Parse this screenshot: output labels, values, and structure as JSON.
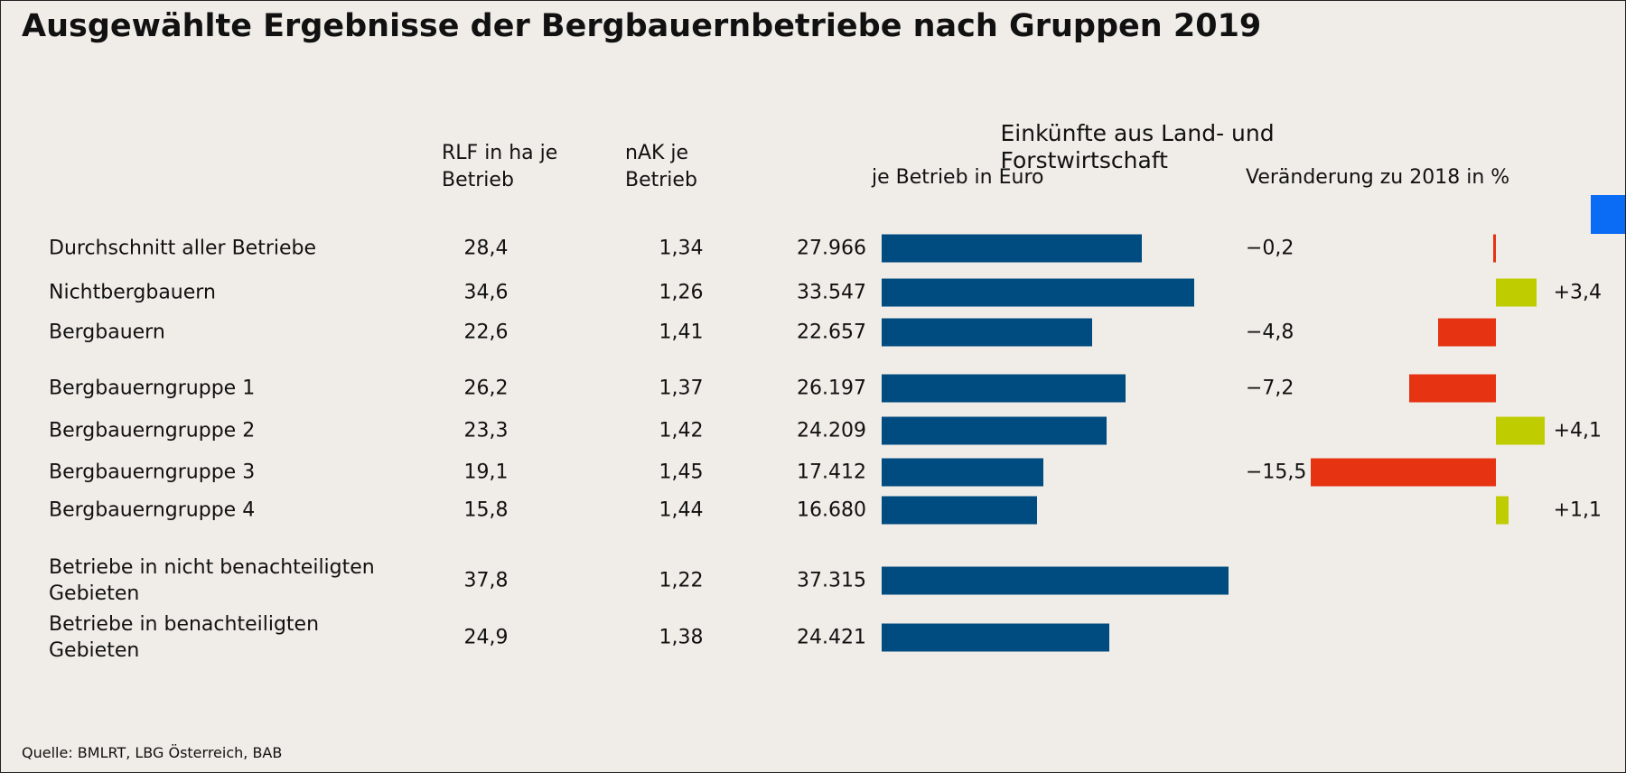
{
  "chart_data": {
    "type": "table_bar",
    "title": "Ausgewählte Ergebnisse der Bergbauernbetriebe nach Gruppen 2019",
    "group_label": "Einkünfte aus Land- und Forstwirtschaft",
    "source": "Quelle: BMLRT, LBG Österreich, BAB",
    "categories": [
      "Durchschnitt aller Betriebe",
      "Nichtbergbauern",
      "Bergbauern",
      "Bergbauerngruppe 1",
      "Bergbauerngruppe 2",
      "Bergbauerngruppe 3",
      "Bergbauerngruppe 4",
      "Betriebe in nicht benachteiligten Gebieten",
      "Betriebe in benachteiligten Gebieten"
    ],
    "series": [
      {
        "name": "RLF in ha je Betrieb",
        "values": [
          28.4,
          34.6,
          22.6,
          26.2,
          23.3,
          19.1,
          15.8,
          37.8,
          24.9
        ],
        "value_labels": [
          "28,4",
          "34,6",
          "22,6",
          "26,2",
          "23,3",
          "19,1",
          "15,8",
          "37,8",
          "24,9"
        ]
      },
      {
        "name": "nAK je Betrieb",
        "values": [
          1.34,
          1.26,
          1.41,
          1.37,
          1.42,
          1.45,
          1.44,
          1.22,
          1.38
        ],
        "value_labels": [
          "1,34",
          "1,26",
          "1,41",
          "1,37",
          "1,42",
          "1,45",
          "1,44",
          "1,22",
          "1,38"
        ]
      },
      {
        "name": "je Betrieb in Euro",
        "color": "#004b7f",
        "values": [
          27966,
          33547,
          22657,
          26197,
          24209,
          17412,
          16680,
          37315,
          24421
        ],
        "value_labels": [
          "27.966",
          "33.547",
          "22.657",
          "26.197",
          "24.209",
          "17.412",
          "16.680",
          "37.315",
          "24.421"
        ]
      },
      {
        "name": "Veränderung zu 2018 in %",
        "color_positive": "#bfcc00",
        "color_negative": "#e63312",
        "values": [
          -0.2,
          3.4,
          -4.8,
          -7.2,
          4.1,
          -15.5,
          1.1,
          null,
          null
        ],
        "value_labels": [
          "−0,2",
          "+3,4",
          "−4,8",
          "−7,2",
          "+4,1",
          "−15,5",
          "+1,1",
          null,
          null
        ]
      }
    ],
    "xlim": [
      0,
      40000
    ],
    "x2lim": [
      -16,
      5
    ]
  }
}
